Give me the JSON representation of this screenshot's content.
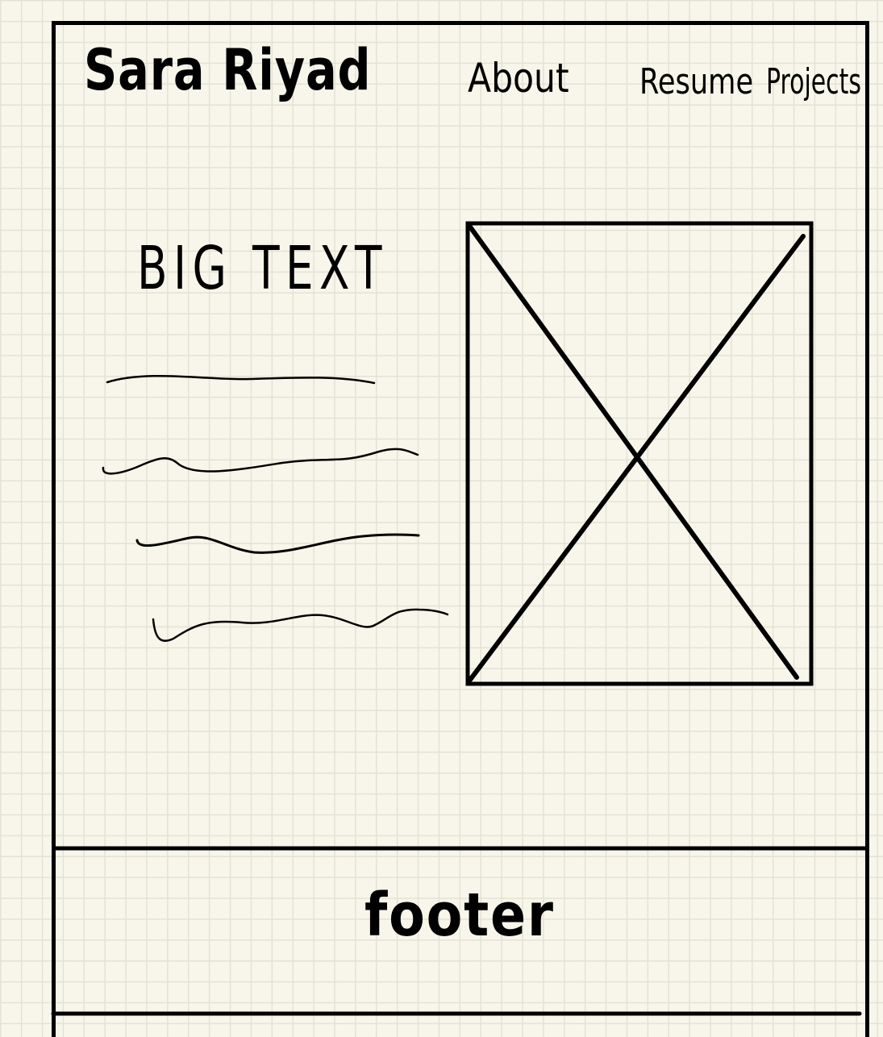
{
  "header": {
    "brand": "Sara Riyad",
    "nav": [
      "About",
      "Resume",
      "Projects"
    ]
  },
  "hero": {
    "title": "BIG TEXT",
    "paragraph_lines": 4,
    "image_placeholder": true
  },
  "footer": {
    "label": "footer"
  },
  "colors": {
    "paper": "#f8f6ea",
    "grid": "#e3e2d4",
    "ink": "#000000"
  }
}
